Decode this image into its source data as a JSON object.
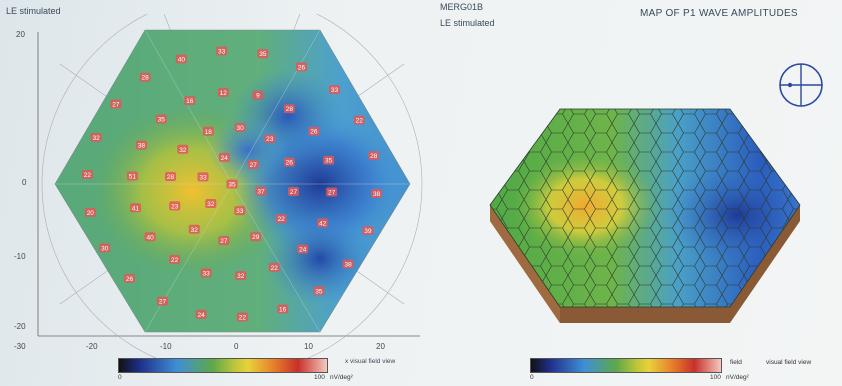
{
  "header": {
    "left_label": "LE stimulated",
    "center_title": "MERG01B",
    "center_sub": "LE stimulated",
    "right_title": "MAP OF P1 WAVE AMPLITUDES"
  },
  "left_plot": {
    "y_ticks": [
      "20",
      "0",
      "-10",
      "-20"
    ],
    "x_ticks": [
      "-30",
      "-20",
      "-10",
      "0",
      "10",
      "20"
    ],
    "x_axis_label": "x visual field view",
    "values": [
      "35",
      "37",
      "33",
      "32",
      "33",
      "24",
      "27",
      "27",
      "22",
      "29",
      "27",
      "32",
      "23",
      "28",
      "32",
      "18",
      "30",
      "23",
      "26",
      "27",
      "42",
      "24",
      "22",
      "32",
      "33",
      "22",
      "40",
      "41",
      "51",
      "38",
      "35",
      "16",
      "12",
      "9",
      "28",
      "26",
      "35",
      "38",
      "39",
      "38",
      "35",
      "16",
      "22",
      "24",
      "27",
      "26",
      "30",
      "20",
      "22",
      "32",
      "27",
      "28",
      "40",
      "33",
      "35",
      "26",
      "33",
      "22",
      "28"
    ]
  },
  "colorbar_left": {
    "min": "0",
    "max": "100",
    "unit": "nV/deg²"
  },
  "colorbar_right": {
    "min": "0",
    "max": "100",
    "unit": "nV/deg²",
    "field_label": "field",
    "view_label": "visual field view"
  },
  "colors": {
    "low": "#1f2f8a",
    "mid_blue": "#3f8fd6",
    "green": "#5ea84a",
    "yellow": "#e8d23a",
    "orange": "#e8822a",
    "red": "#c8302a",
    "hex_edge": "#d8dcdc"
  }
}
